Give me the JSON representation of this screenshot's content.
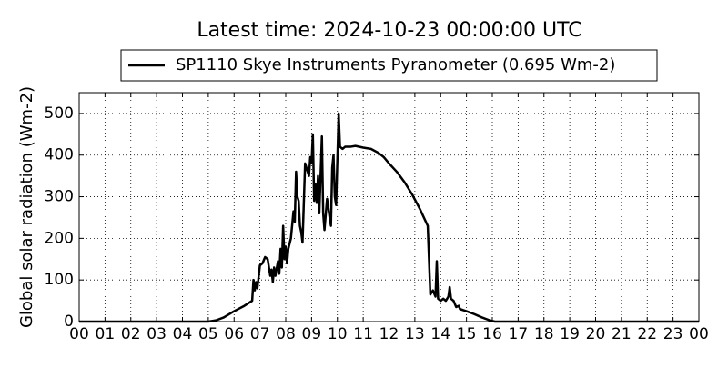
{
  "chart_data": {
    "type": "line",
    "title": "Latest time: 2024-10-23 00:00:00 UTC",
    "y_label": "Global solar radiation (Wm-2)",
    "grid": true,
    "legend_position": "top",
    "xlim": [
      0,
      24
    ],
    "ylim": [
      0,
      550
    ],
    "xticks": [
      {
        "value": 0,
        "label": "00"
      },
      {
        "value": 1,
        "label": "01"
      },
      {
        "value": 2,
        "label": "02"
      },
      {
        "value": 3,
        "label": "03"
      },
      {
        "value": 4,
        "label": "04"
      },
      {
        "value": 5,
        "label": "05"
      },
      {
        "value": 6,
        "label": "06"
      },
      {
        "value": 7,
        "label": "07"
      },
      {
        "value": 8,
        "label": "08"
      },
      {
        "value": 9,
        "label": "09"
      },
      10,
      11,
      12,
      13,
      14,
      15,
      16,
      17,
      18,
      19,
      20,
      21,
      22,
      23,
      {
        "value": 24,
        "label": "00"
      }
    ],
    "yticks": [
      0,
      100,
      200,
      300,
      400,
      500
    ],
    "series": [
      {
        "name": "SP1110 Skye Instruments Pyranometer (0.695 Wm-2)",
        "color": "#000000",
        "x": [
          0,
          5.0,
          5.3,
          5.6,
          6.0,
          6.4,
          6.7,
          6.75,
          6.8,
          6.85,
          6.9,
          7.0,
          7.1,
          7.2,
          7.3,
          7.35,
          7.4,
          7.45,
          7.5,
          7.55,
          7.6,
          7.7,
          7.75,
          7.8,
          7.85,
          7.9,
          7.95,
          8.0,
          8.05,
          8.1,
          8.2,
          8.3,
          8.35,
          8.4,
          8.45,
          8.5,
          8.55,
          8.6,
          8.65,
          8.75,
          8.8,
          8.9,
          8.95,
          9.0,
          9.05,
          9.1,
          9.15,
          9.2,
          9.25,
          9.3,
          9.4,
          9.45,
          9.5,
          9.6,
          9.7,
          9.75,
          9.8,
          9.85,
          9.9,
          9.95,
          10.05,
          10.1,
          10.2,
          10.3,
          10.5,
          10.7,
          11.0,
          11.3,
          11.6,
          11.8,
          12.0,
          12.3,
          12.6,
          12.9,
          13.2,
          13.5,
          13.6,
          13.7,
          13.8,
          13.85,
          13.9,
          14.0,
          14.1,
          14.2,
          14.3,
          14.35,
          14.4,
          14.5,
          14.6,
          14.7,
          14.75,
          15.0,
          15.3,
          15.6,
          15.9,
          16.1,
          24
        ],
        "values": [
          0,
          0,
          3,
          10,
          25,
          38,
          50,
          100,
          75,
          95,
          80,
          135,
          140,
          155,
          150,
          130,
          110,
          125,
          95,
          130,
          110,
          145,
          115,
          175,
          130,
          230,
          150,
          180,
          140,
          175,
          200,
          265,
          240,
          360,
          300,
          290,
          230,
          215,
          190,
          380,
          370,
          350,
          395,
          380,
          450,
          290,
          330,
          285,
          350,
          260,
          445,
          260,
          220,
          295,
          250,
          230,
          370,
          400,
          300,
          280,
          500,
          420,
          415,
          420,
          420,
          422,
          418,
          415,
          405,
          395,
          380,
          360,
          335,
          305,
          270,
          230,
          65,
          75,
          60,
          145,
          55,
          50,
          55,
          50,
          60,
          83,
          55,
          50,
          35,
          38,
          30,
          25,
          18,
          10,
          3,
          0,
          0
        ]
      }
    ]
  }
}
